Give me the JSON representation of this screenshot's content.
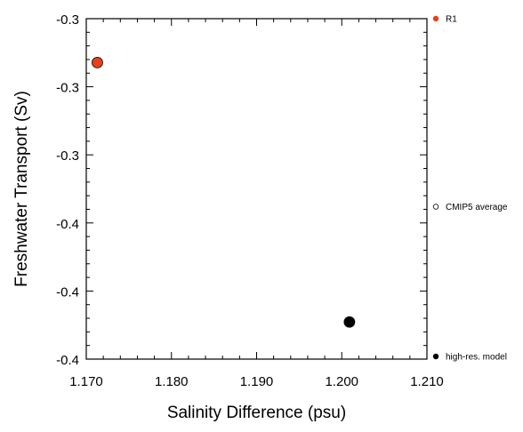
{
  "chart_data": {
    "type": "scatter",
    "title": "",
    "xlabel": "Salinity Difference (psu)",
    "ylabel": "Freshwater Transport (Sv)",
    "xlim": [
      1.17,
      1.21
    ],
    "ylim": [
      -0.4,
      -0.3
    ],
    "x_ticks": [
      1.17,
      1.18,
      1.19,
      1.2,
      1.21
    ],
    "x_tick_labels": [
      "1.170",
      "1.180",
      "1.190",
      "1.200",
      "1.210"
    ],
    "y_ticks": [
      -0.3,
      -0.32,
      -0.34,
      -0.36,
      -0.38,
      -0.4
    ],
    "y_tick_labels": [
      "-0.3",
      "-0.3",
      "-0.3",
      "-0.4",
      "-0.4",
      "-0.4"
    ],
    "grid": false,
    "legend_position": "right",
    "series": [
      {
        "name": "R1",
        "color": "#e8401c",
        "filled": true,
        "x": [
          1.1713
        ],
        "y": [
          -0.3129
        ]
      },
      {
        "name": "CMIP5 average",
        "color": "#000000",
        "filled": false,
        "x": [],
        "y": []
      },
      {
        "name": "high-res. model",
        "color": "#000000",
        "filled": true,
        "x": [
          1.2009
        ],
        "y": [
          -0.3891
        ]
      }
    ]
  }
}
